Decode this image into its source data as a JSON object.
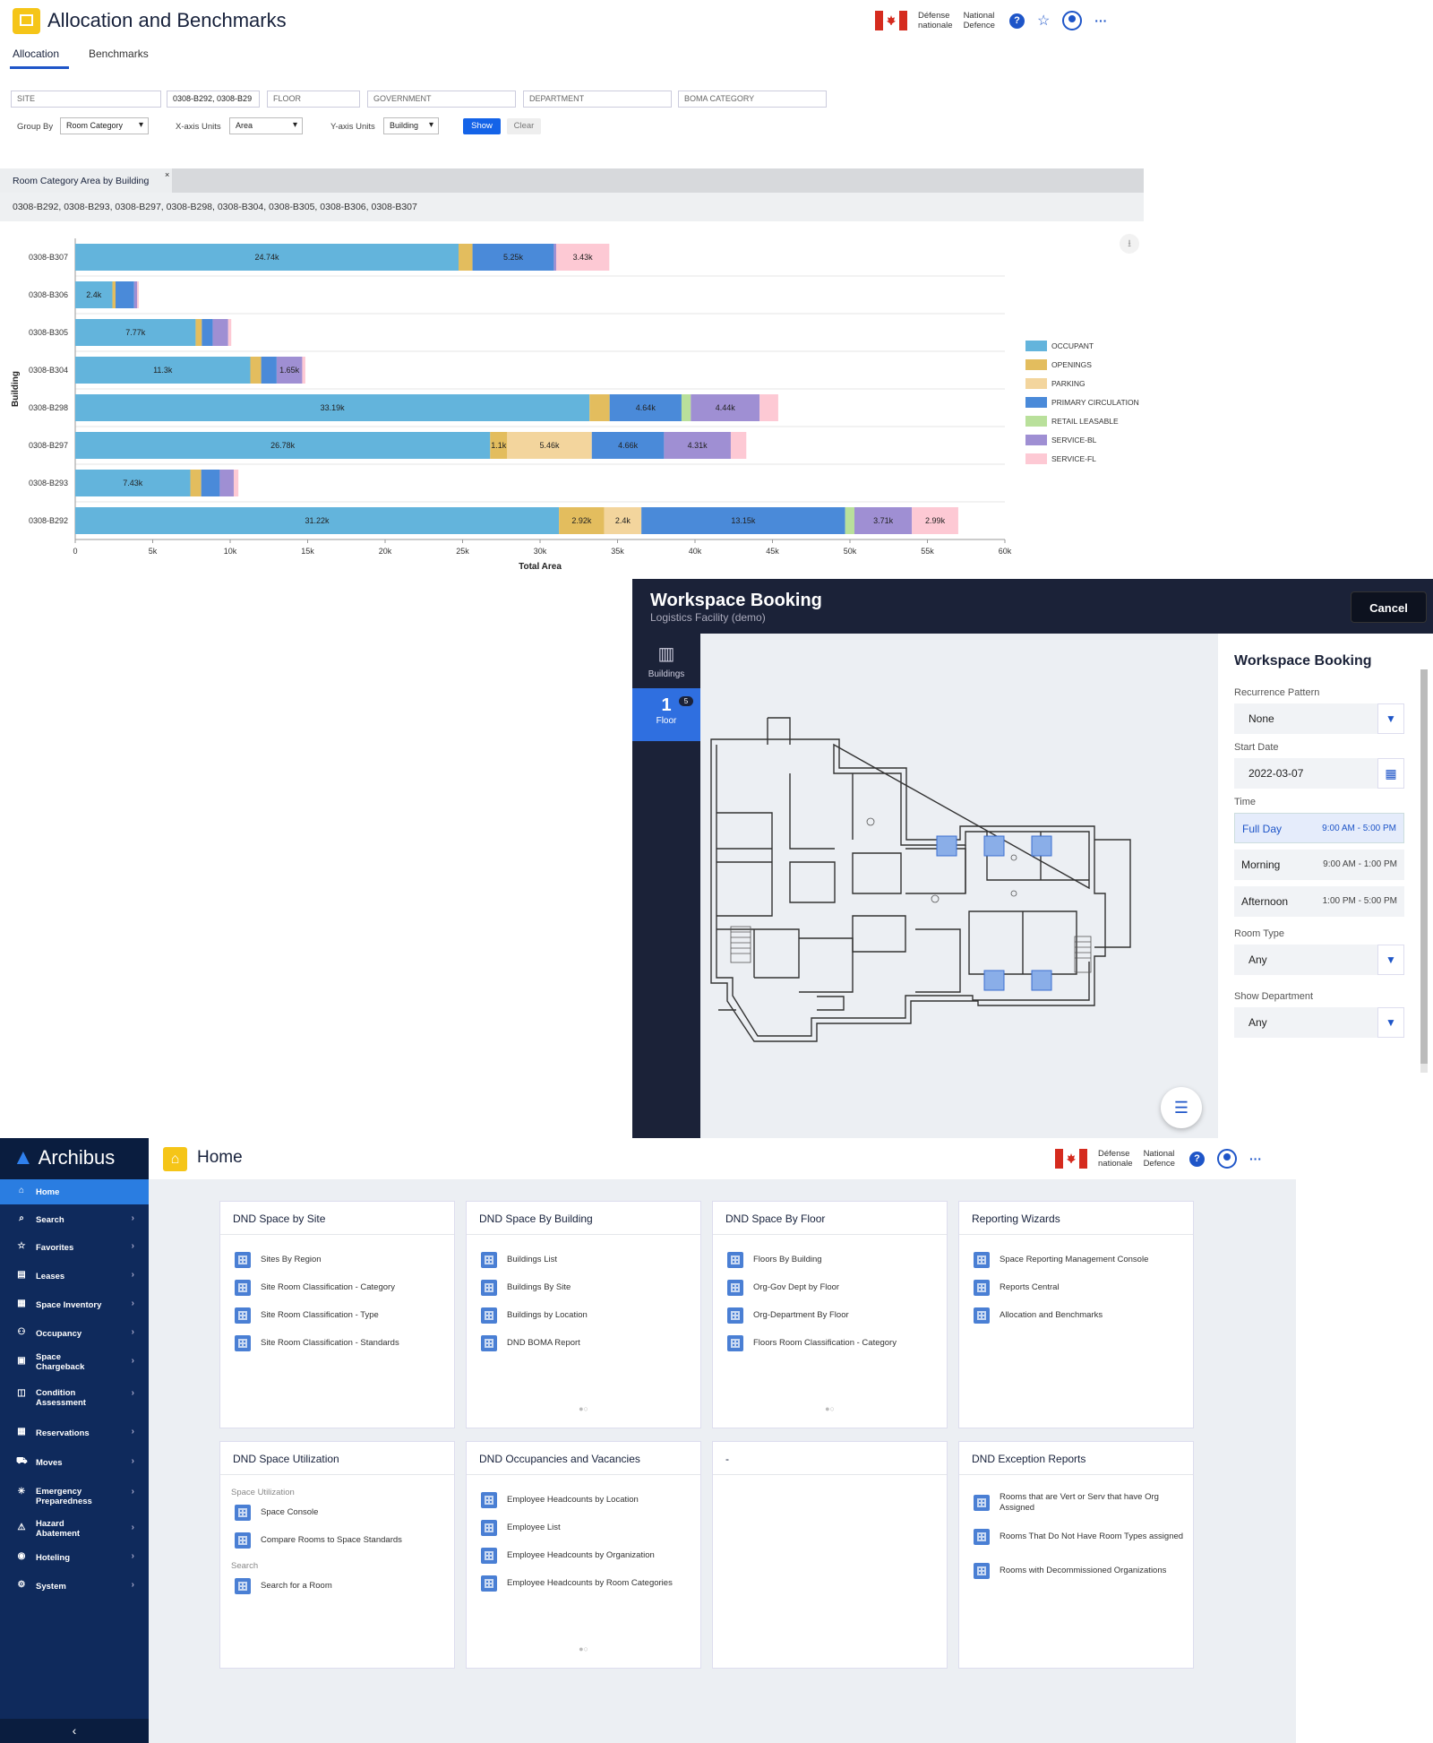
{
  "alloc": {
    "title": "Allocation and Benchmarks",
    "header": {
      "dnd_fr_1": "Défense",
      "dnd_fr_2": "nationale",
      "dnd_en_1": "National",
      "dnd_en_2": "Defence"
    },
    "tabs": [
      "Allocation",
      "Benchmarks"
    ],
    "filters": {
      "site": "SITE",
      "building": "0308-B292, 0308-B29",
      "floor": "FLOOR",
      "government": "GOVERNMENT",
      "department": "DEPARTMENT",
      "boma": "BOMA CATEGORY"
    },
    "group_by_label": "Group By",
    "group_by_value": "Room Category",
    "xaxis_label": "X-axis Units",
    "xaxis_value": "Area",
    "yaxis_label": "Y-axis Units",
    "yaxis_value": "Building",
    "show": "Show",
    "clear": "Clear",
    "panel_tab": "Room Category Area by Building",
    "panel_sub": "0308-B292, 0308-B293, 0308-B297, 0308-B298, 0308-B304, 0308-B305, 0308-B306, 0308-B307"
  },
  "chart_data": {
    "type": "bar",
    "orientation": "horizontal-stacked",
    "xlabel": "Total Area",
    "ylabel": "Building",
    "xlim": [
      0,
      60000
    ],
    "xticks": [
      "0",
      "5k",
      "10k",
      "15k",
      "20k",
      "25k",
      "30k",
      "35k",
      "40k",
      "45k",
      "50k",
      "55k",
      "60k"
    ],
    "categories": [
      "0308-B307",
      "0308-B306",
      "0308-B305",
      "0308-B304",
      "0308-B298",
      "0308-B297",
      "0308-B293",
      "0308-B292"
    ],
    "legend_position": "right",
    "series": [
      {
        "name": "OCCUPANT",
        "color": "#63b4dc",
        "values": [
          24740,
          2400,
          7770,
          11300,
          33190,
          26780,
          7430,
          31220
        ],
        "labels": [
          "24.74k",
          "2.4k",
          "7.77k",
          "11.3k",
          "33.19k",
          "26.78k",
          "7.43k",
          "31.22k"
        ]
      },
      {
        "name": "OPENINGS",
        "color": "#e3bd5e",
        "values": [
          900,
          200,
          400,
          700,
          1300,
          1100,
          700,
          2920
        ],
        "labels": [
          "",
          "",
          "",
          "",
          "",
          "1.1k",
          "",
          "2.92k"
        ]
      },
      {
        "name": "PARKING",
        "color": "#f3d59d",
        "values": [
          0,
          0,
          0,
          0,
          0,
          5460,
          0,
          2400
        ],
        "labels": [
          "",
          "",
          "",
          "",
          "",
          "5.46k",
          "",
          "2.4k"
        ]
      },
      {
        "name": "PRIMARY CIRCULATION",
        "color": "#4a8ad9",
        "values": [
          5250,
          1200,
          700,
          1000,
          4640,
          4660,
          1200,
          13150
        ],
        "labels": [
          "5.25k",
          "",
          "",
          "",
          "4.64k",
          "4.66k",
          "",
          "13.15k"
        ]
      },
      {
        "name": "RETAIL LEASABLE",
        "color": "#b9e09b",
        "values": [
          0,
          0,
          0,
          0,
          600,
          0,
          0,
          600
        ],
        "labels": [
          "",
          "",
          "",
          "",
          "",
          "",
          "",
          ""
        ]
      },
      {
        "name": "SERVICE-BL",
        "color": "#9f8fd3",
        "values": [
          150,
          200,
          1000,
          1650,
          4440,
          4310,
          900,
          3710
        ],
        "labels": [
          "",
          "",
          "",
          "1.65k",
          "4.44k",
          "4.31k",
          "",
          "3.71k"
        ]
      },
      {
        "name": "SERVICE-FL",
        "color": "#fdc9d4",
        "values": [
          3430,
          100,
          200,
          200,
          1200,
          1000,
          300,
          2990
        ],
        "labels": [
          "3.43k",
          "",
          "",
          "",
          "",
          "",
          "",
          "2.99k"
        ]
      }
    ]
  },
  "booking": {
    "title": "Workspace Booking",
    "subtitle": "Logistics Facility (demo)",
    "cancel": "Cancel",
    "buildings": "Buildings",
    "floor_num": "1",
    "floor_label": "Floor",
    "floor_badge": "5",
    "panel_title": "Workspace Booking",
    "recurrence_label": "Recurrence Pattern",
    "recurrence_value": "None",
    "start_label": "Start Date",
    "start_value": "2022-03-07",
    "time_label": "Time",
    "times": [
      {
        "name": "Full Day",
        "range": "9:00 AM - 5:00 PM"
      },
      {
        "name": "Morning",
        "range": "9:00 AM - 1:00 PM"
      },
      {
        "name": "Afternoon",
        "range": "1:00 PM - 5:00 PM"
      }
    ],
    "roomtype_label": "Room Type",
    "roomtype_value": "Any",
    "dept_label": "Show Department",
    "dept_value": "Any"
  },
  "home": {
    "brand": "Archibus",
    "title": "Home",
    "nav": [
      {
        "label": "Home",
        "icon": "home-icon"
      },
      {
        "label": "Search",
        "icon": "search-icon"
      },
      {
        "label": "Favorites",
        "icon": "star-icon"
      },
      {
        "label": "Leases",
        "icon": "lease-icon"
      },
      {
        "label": "Space Inventory",
        "icon": "inventory-icon"
      },
      {
        "label": "Occupancy",
        "icon": "occupancy-icon"
      },
      {
        "label": "Space Chargeback",
        "icon": "chargeback-icon"
      },
      {
        "label": "Condition Assessment",
        "icon": "condition-icon"
      },
      {
        "label": "Reservations",
        "icon": "calendar-icon"
      },
      {
        "label": "Moves",
        "icon": "truck-icon"
      },
      {
        "label": "Emergency Preparedness",
        "icon": "emergency-icon"
      },
      {
        "label": "Hazard Abatement",
        "icon": "hazard-icon"
      },
      {
        "label": "Hoteling",
        "icon": "hoteling-icon"
      },
      {
        "label": "System",
        "icon": "gear-icon"
      }
    ],
    "cards": [
      {
        "title": "DND Space by Site",
        "items": [
          "Sites By Region",
          "Site Room Classification - Category",
          "Site Room Classification - Type",
          "Site Room Classification - Standards"
        ]
      },
      {
        "title": "DND Space By Building",
        "items": [
          "Buildings List",
          "Buildings By Site",
          "Buildings by Location",
          "DND BOMA Report"
        ]
      },
      {
        "title": "DND Space By Floor",
        "items": [
          "Floors By Building",
          "Org-Gov Dept by Floor",
          "Org-Department By Floor",
          "Floors Room Classification - Category"
        ]
      },
      {
        "title": "Reporting Wizards",
        "items": [
          "Space Reporting Management Console",
          "Reports Central",
          "Allocation and Benchmarks"
        ]
      },
      {
        "title": "DND Space Utilization",
        "sec1": "Space Utilization",
        "items": [
          "Space Console",
          "Compare Rooms to Space Standards"
        ],
        "sec2": "Search",
        "items2": [
          "Search for a Room"
        ]
      },
      {
        "title": "DND Occupancies and Vacancies",
        "items": [
          "Employee Headcounts by Location",
          "Employee List",
          "Employee Headcounts by Organization",
          "Employee Headcounts by Room Categories"
        ]
      },
      {
        "title": "-",
        "items": []
      },
      {
        "title": "DND Exception Reports",
        "items": [
          "Rooms that are Vert or Serv that have Org Assigned",
          "Rooms That Do Not Have Room Types assigned",
          "Rooms with Decommissioned Organizations"
        ]
      }
    ]
  }
}
